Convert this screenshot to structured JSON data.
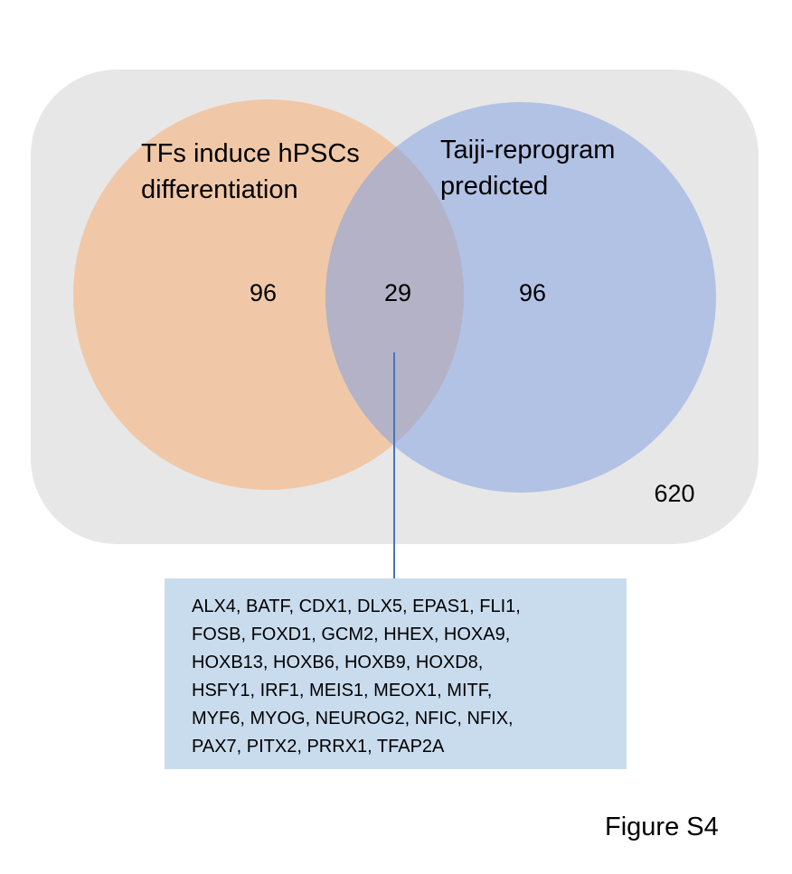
{
  "diagram": {
    "universe_count": "620",
    "colors": {
      "universe": "#e7e7e7",
      "left_set": "#f0c8a8",
      "right_set": "#b2c2e4",
      "overlap": "#b3b2c7",
      "connector": "#4a73b5",
      "gene_box": "#c9dcee"
    },
    "left_set": {
      "label_line1": "TFs induce hPSCs",
      "label_line2": "differentiation",
      "only_count": "96"
    },
    "right_set": {
      "label_line1": "Taiji-reprogram",
      "label_line2": "predicted",
      "only_count": "96"
    },
    "overlap": {
      "count": "29",
      "gene_lines": [
        "ALX4, BATF, CDX1, DLX5, EPAS1, FLI1,",
        "FOSB, FOXD1, GCM2, HHEX, HOXA9,",
        "HOXB13, HOXB6, HOXB9, HOXD8,",
        "HSFY1, IRF1, MEIS1, MEOX1, MITF,",
        "MYF6, MYOG, NEUROG2, NFIC, NFIX,",
        "PAX7, PITX2, PRRX1, TFAP2A"
      ]
    }
  },
  "figure_label": "Figure S4"
}
